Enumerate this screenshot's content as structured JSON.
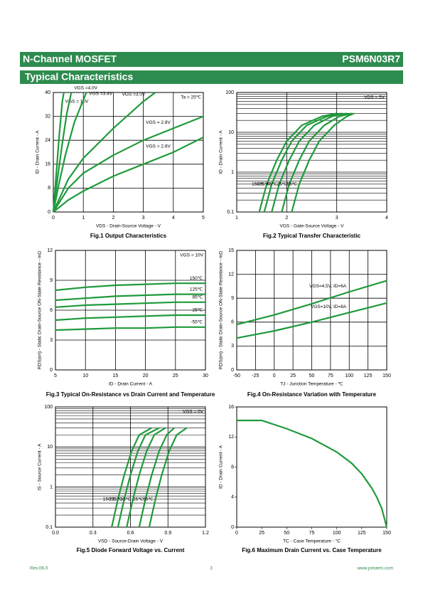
{
  "header": {
    "left": "N-Channel MOSFET",
    "right": "PSM6N03R7"
  },
  "section": "Typical Characteristics",
  "chart_data": [
    {
      "type": "line",
      "title": "Fig.1 Output Characteristics",
      "xlabel": "VDS - Drain-Source Voltage - V",
      "ylabel": "ID - Drain Current - A",
      "xlim": [
        0,
        5
      ],
      "ylim": [
        0,
        40
      ],
      "xticks": [
        0,
        1,
        2,
        3,
        4,
        5
      ],
      "yticks": [
        0,
        8,
        16,
        24,
        32,
        40
      ],
      "log_y": false,
      "grid": true,
      "annotation": "Ta = 25℃",
      "color": "#1f9a3b",
      "series": [
        {
          "name": "VGS = 10V",
          "x": [
            0,
            0.1,
            0.2,
            0.3,
            0.35
          ],
          "values": [
            0,
            13,
            26,
            37,
            40
          ]
        },
        {
          "name": "VGS =4.0V",
          "x": [
            0,
            0.15,
            0.3,
            0.45,
            0.6
          ],
          "values": [
            0,
            12,
            23,
            33,
            40
          ]
        },
        {
          "name": "VGS =3.4V",
          "x": [
            0,
            0.2,
            0.4,
            0.7,
            1.1
          ],
          "values": [
            0,
            10,
            19,
            30,
            40
          ]
        },
        {
          "name": "VGS =3.0V",
          "x": [
            0,
            0.5,
            1,
            2,
            3,
            3.4
          ],
          "values": [
            0,
            11,
            18,
            28,
            37,
            40
          ]
        },
        {
          "name": "VGS = 2.8V",
          "x": [
            0,
            0.5,
            1,
            2,
            3,
            4,
            5
          ],
          "values": [
            0,
            8,
            13,
            19,
            24,
            28,
            32
          ]
        },
        {
          "name": "VGS = 2.6V",
          "x": [
            0,
            0.5,
            1,
            2,
            3,
            4,
            5
          ],
          "values": [
            0,
            4,
            7,
            12,
            16,
            20,
            25
          ]
        }
      ]
    },
    {
      "type": "line",
      "title": "Fig.2 Typical Transfer Characteristic",
      "xlabel": "VGS - Gate-Source Voltage - V",
      "ylabel": "ID - Drain Current - A",
      "xlim": [
        1,
        4
      ],
      "ylim": [
        0.1,
        100
      ],
      "xticks": [
        1,
        2,
        3,
        4
      ],
      "yticks": [
        0.1,
        1,
        10,
        100
      ],
      "log_y": true,
      "grid": true,
      "annotation": "VDS = 5V",
      "color": "#1f9a3b",
      "series": [
        {
          "name": "150℃",
          "x": [
            1.45,
            1.6,
            1.8,
            2.0,
            2.3,
            2.7,
            3.0
          ],
          "values": [
            0.1,
            0.5,
            2,
            6,
            15,
            25,
            30
          ]
        },
        {
          "name": "125℃",
          "x": [
            1.55,
            1.7,
            1.9,
            2.1,
            2.4,
            2.8,
            3.1
          ],
          "values": [
            0.1,
            0.5,
            2,
            6,
            15,
            25,
            30
          ]
        },
        {
          "name": "85℃",
          "x": [
            1.7,
            1.85,
            2.05,
            2.25,
            2.55,
            2.9,
            3.2
          ],
          "values": [
            0.1,
            0.5,
            2,
            6,
            15,
            25,
            30
          ]
        },
        {
          "name": "25℃",
          "x": [
            1.9,
            2.05,
            2.25,
            2.45,
            2.75,
            3.05,
            3.3
          ],
          "values": [
            0.1,
            0.5,
            2,
            6,
            15,
            25,
            30
          ]
        },
        {
          "name": "-55℃",
          "x": [
            2.1,
            2.25,
            2.45,
            2.65,
            2.95,
            3.2,
            3.35
          ],
          "values": [
            0.1,
            0.5,
            2,
            6,
            15,
            25,
            30
          ]
        }
      ]
    },
    {
      "type": "line",
      "title": "Fig.3 Typical On-Resistance  vs Drain Current and Temperature",
      "xlabel": "ID - Drain Current - A",
      "ylabel": "RDS(on) - Static Drain-Source ON-State Resistance - mΩ",
      "xlim": [
        5,
        30
      ],
      "ylim": [
        0,
        12
      ],
      "xticks": [
        5,
        10,
        15,
        20,
        25,
        30
      ],
      "yticks": [
        0,
        3,
        6,
        9,
        12
      ],
      "log_y": false,
      "grid": true,
      "annotation": "VGS = 10V",
      "color": "#1f9a3b",
      "series": [
        {
          "name": "150℃",
          "x": [
            5,
            10,
            15,
            20,
            25,
            30
          ],
          "values": [
            8.0,
            8.3,
            8.5,
            8.6,
            8.7,
            8.7
          ]
        },
        {
          "name": "125℃",
          "x": [
            5,
            10,
            15,
            20,
            25,
            30
          ],
          "values": [
            7.0,
            7.2,
            7.4,
            7.5,
            7.6,
            7.6
          ]
        },
        {
          "name": "85℃",
          "x": [
            5,
            10,
            15,
            20,
            25,
            30
          ],
          "values": [
            6.3,
            6.5,
            6.6,
            6.7,
            6.8,
            6.8
          ]
        },
        {
          "name": "25℃",
          "x": [
            5,
            10,
            15,
            20,
            25,
            30
          ],
          "values": [
            5.0,
            5.2,
            5.3,
            5.4,
            5.5,
            5.5
          ]
        },
        {
          "name": "-55℃",
          "x": [
            5,
            10,
            15,
            20,
            25,
            30
          ],
          "values": [
            4.0,
            4.1,
            4.2,
            4.2,
            4.3,
            4.3
          ]
        }
      ]
    },
    {
      "type": "line",
      "title": "Fig.4 On-Resistance Variation with Temperature",
      "xlabel": "TJ - Junction Temperature - ℃",
      "ylabel": "RDS(on) - Static Drain-Source ON-State Resistance - mΩ",
      "xlim": [
        -50,
        150
      ],
      "ylim": [
        0,
        15
      ],
      "xticks": [
        -50,
        -25,
        0,
        25,
        50,
        75,
        100,
        125,
        150
      ],
      "yticks": [
        0,
        3,
        6,
        9,
        12,
        15
      ],
      "log_y": false,
      "grid": true,
      "color": "#1f9a3b",
      "series": [
        {
          "name": "VGS=4.5V, ID=6A",
          "x": [
            -50,
            0,
            50,
            100,
            150
          ],
          "values": [
            5.7,
            6.9,
            8.3,
            9.8,
            11.2
          ]
        },
        {
          "name": "VGS=10V, ID=8A",
          "x": [
            -50,
            0,
            50,
            100,
            150
          ],
          "values": [
            4.0,
            4.9,
            6.0,
            7.2,
            8.4
          ]
        }
      ]
    },
    {
      "type": "line",
      "title": "Fig.5 Diode Forward Voltage vs. Current",
      "xlabel": "VSD - Source-Drain Voltage - V",
      "ylabel": "IS - Source Current - A",
      "xlim": [
        0,
        1.2
      ],
      "ylim": [
        0.1,
        100
      ],
      "xticks": [
        {
          "value": 0,
          "label": "0.0"
        },
        0.3,
        0.6,
        0.9,
        1.2
      ],
      "yticks": [
        0.1,
        1,
        10,
        100
      ],
      "log_y": true,
      "grid": true,
      "annotation": "VGS = 0V",
      "color": "#1f9a3b",
      "series": [
        {
          "name": "150℃",
          "x": [
            0.45,
            0.5,
            0.55,
            0.61,
            0.67,
            0.77
          ],
          "values": [
            0.1,
            0.5,
            2,
            8,
            20,
            30
          ]
        },
        {
          "name": "125℃",
          "x": [
            0.5,
            0.55,
            0.6,
            0.66,
            0.72,
            0.83
          ],
          "values": [
            0.1,
            0.5,
            2,
            8,
            20,
            30
          ]
        },
        {
          "name": "85℃",
          "x": [
            0.57,
            0.62,
            0.67,
            0.73,
            0.79,
            0.88
          ],
          "values": [
            0.1,
            0.5,
            2,
            8,
            20,
            30
          ]
        },
        {
          "name": "25℃",
          "x": [
            0.67,
            0.72,
            0.77,
            0.83,
            0.89,
            0.95
          ],
          "values": [
            0.1,
            0.5,
            2,
            8,
            20,
            30
          ]
        },
        {
          "name": "-55℃",
          "x": [
            0.75,
            0.8,
            0.85,
            0.91,
            0.97,
            1.05
          ],
          "values": [
            0.1,
            0.5,
            2,
            8,
            20,
            30
          ]
        }
      ]
    },
    {
      "type": "line",
      "title": "Fig.6 Maximum Drain Current vs. Case Temperature",
      "xlabel": "TC - Case Temperature - °C",
      "ylabel": "ID - Drain Current - A",
      "xlim": [
        0,
        150
      ],
      "ylim": [
        0,
        16
      ],
      "xticks": [
        0,
        25,
        50,
        75,
        100,
        125,
        150
      ],
      "yticks": [
        0,
        4,
        8,
        12,
        16
      ],
      "log_y": false,
      "grid": false,
      "color": "#1f9a3b",
      "series": [
        {
          "x": [
            0,
            25,
            50,
            75,
            100,
            115,
            125,
            135,
            140,
            145,
            150
          ],
          "values": [
            14.2,
            14.2,
            13.1,
            11.8,
            10.0,
            8.5,
            7.1,
            5.2,
            4.0,
            2.5,
            0
          ]
        }
      ]
    }
  ],
  "footer": {
    "rev": "Rev.06.0",
    "page": "3",
    "url": "www.prisemi.com"
  }
}
